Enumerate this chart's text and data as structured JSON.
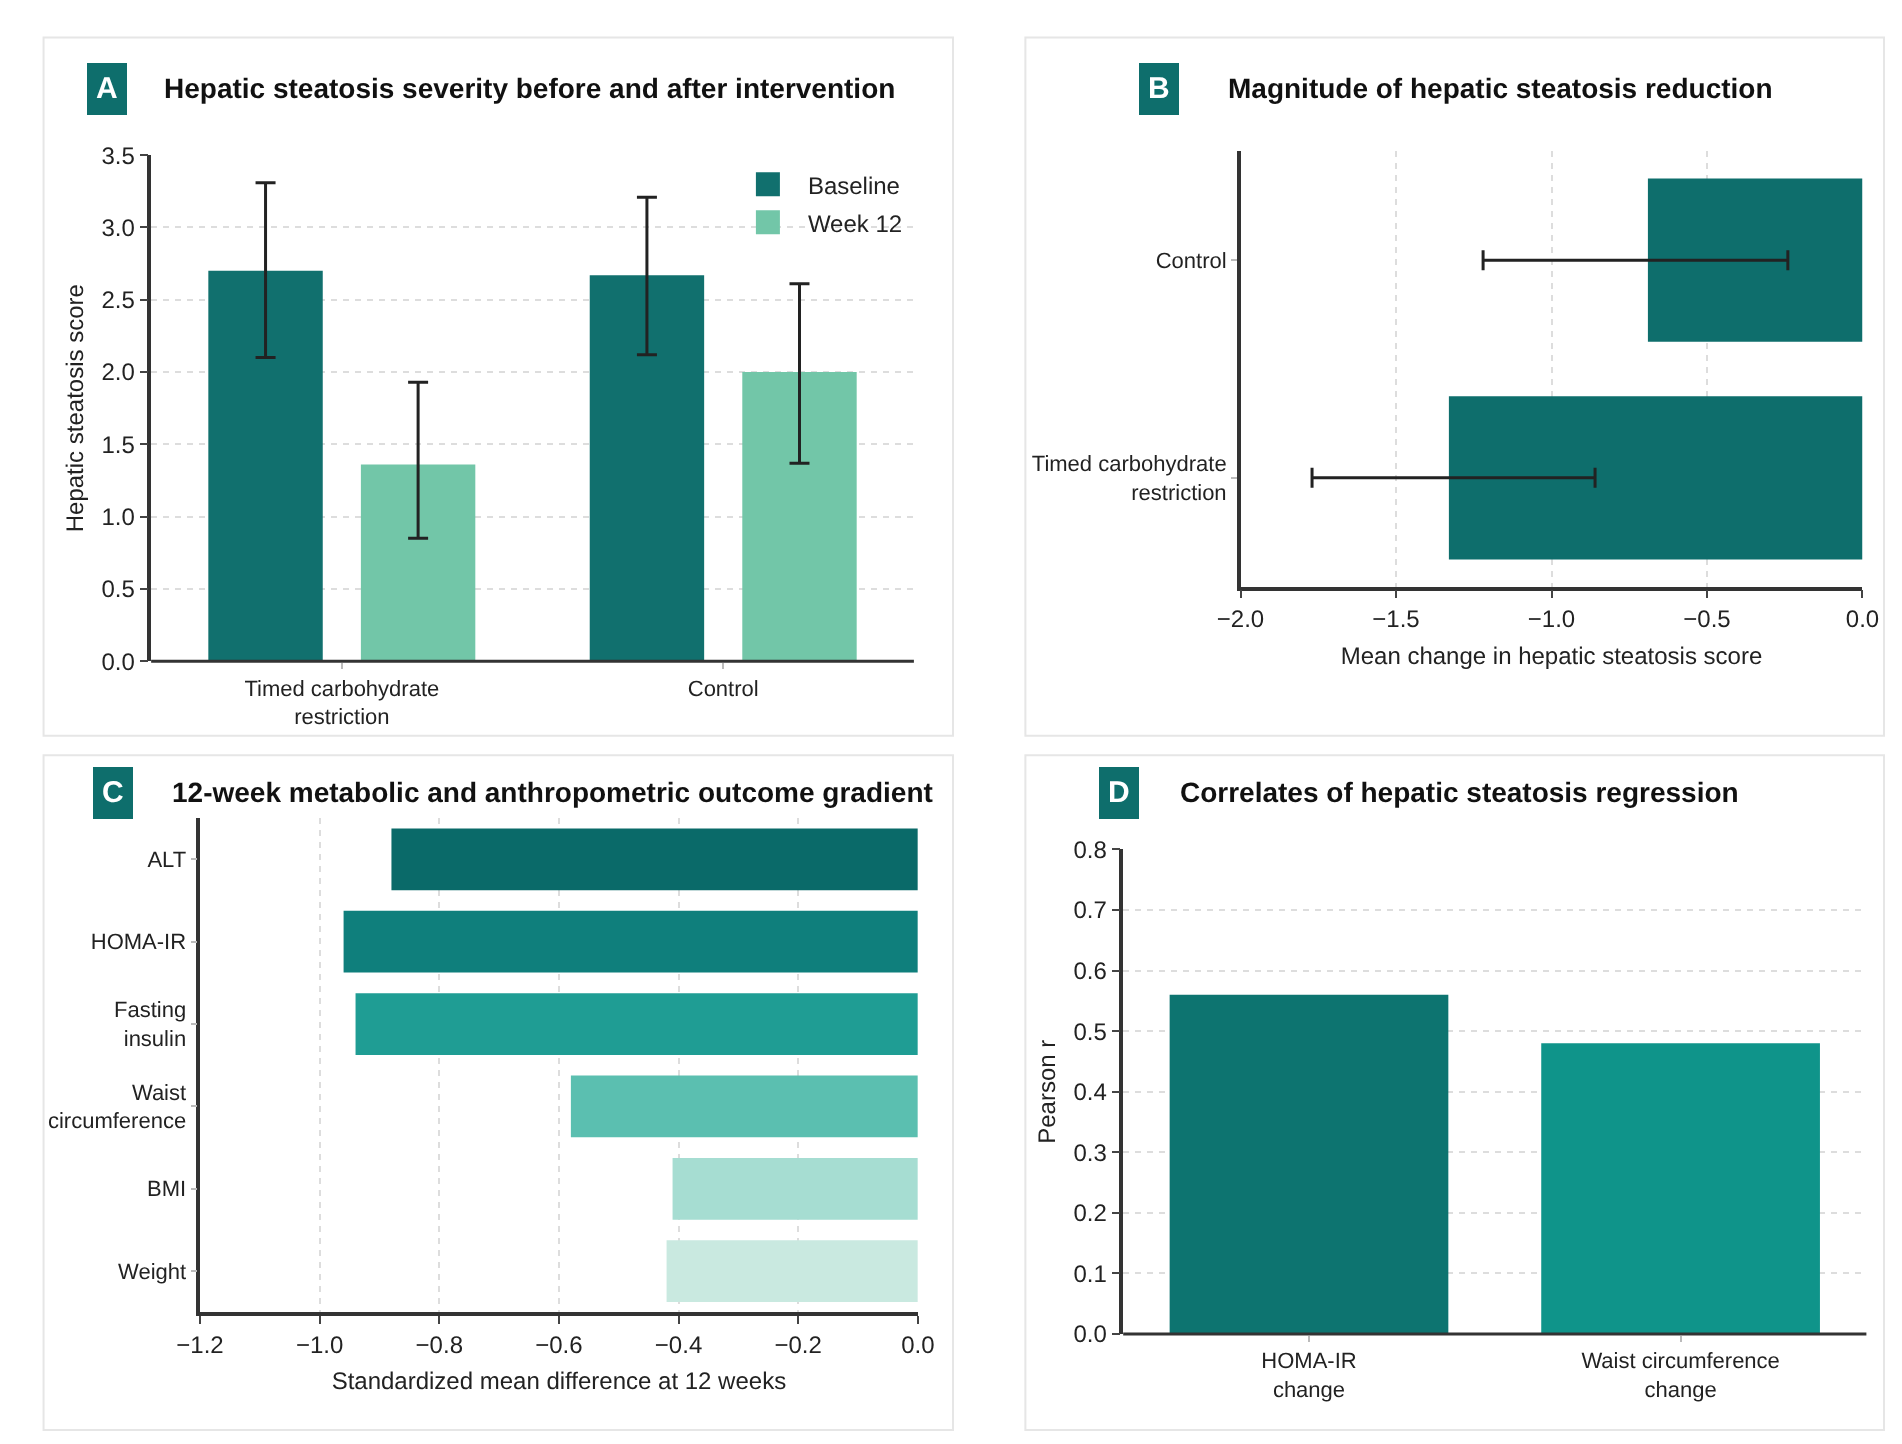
{
  "chart_data": [
    {
      "type": "bar",
      "title": "Hepatic steatosis severity before and after intervention",
      "annotations": [
        "A"
      ],
      "ylabel": "Hepatic steatosis score",
      "categories": [
        "Timed carbohydrate restriction",
        "Control"
      ],
      "series": [
        {
          "name": "Baseline",
          "color": "#11706e",
          "values": [
            2.7,
            2.67
          ],
          "errors": [
            [
              2.1,
              3.31
            ],
            [
              2.12,
              3.21
            ]
          ]
        },
        {
          "name": "Week 12",
          "color": "#72c6a8",
          "values": [
            1.36,
            2.0
          ],
          "errors": [
            [
              0.85,
              1.93
            ],
            [
              1.37,
              2.61
            ]
          ]
        }
      ],
      "ylim": [
        0,
        3.5
      ],
      "yticks": [
        {
          "value": 0,
          "label": "0.0"
        },
        0.5,
        {
          "value": 1,
          "label": "1.0"
        },
        1.5,
        {
          "value": 2,
          "label": "2.0"
        },
        2.5,
        {
          "value": 3,
          "label": "3.0"
        },
        3.5
      ],
      "grid": "y",
      "legend": "top right"
    },
    {
      "type": "bar",
      "orientation": "horizontal",
      "title": "Magnitude of hepatic steatosis reduction",
      "annotations": [
        "B"
      ],
      "xlabel": "Mean change in hepatic steatosis score",
      "categories": [
        "Control",
        "Timed carbohydrate restriction"
      ],
      "series": [
        {
          "color": "#0e6e6c",
          "values": [
            -0.69,
            -1.33
          ],
          "errors": [
            [
              -1.22,
              -0.24
            ],
            [
              -1.77,
              -0.86
            ]
          ]
        }
      ],
      "xlim": [
        -2,
        0
      ],
      "xticks": [
        {
          "value": -2,
          "label": "−2.0"
        },
        {
          "value": -1.5,
          "label": "−1.5"
        },
        {
          "value": -1,
          "label": "−1.0"
        },
        {
          "value": -0.5,
          "label": "−0.5"
        },
        {
          "value": 0,
          "label": "0.0"
        }
      ],
      "grid": "x"
    },
    {
      "type": "bar",
      "orientation": "horizontal",
      "title": "12-week metabolic and anthropometric outcome gradient",
      "annotations": [
        "C"
      ],
      "xlabel": "Standardized mean difference at 12 weeks",
      "categories": [
        "ALT",
        "HOMA-IR",
        "Fasting insulin",
        "Waist circumference",
        "BMI",
        "Weight"
      ],
      "series": [
        {
          "colors": [
            "#0a6a69",
            "#0f7f7c",
            "#1f9d94",
            "#5bbfb0",
            "#a6ddd2",
            "#c9e9e0"
          ],
          "values": [
            -0.88,
            -0.96,
            -0.94,
            -0.58,
            -0.41,
            -0.42
          ]
        }
      ],
      "xlim": [
        -1.2,
        0
      ],
      "xticks": [
        {
          "value": -1.2,
          "label": "−1.2"
        },
        {
          "value": -1,
          "label": "−1.0"
        },
        {
          "value": -0.8,
          "label": "−0.8"
        },
        {
          "value": -0.6,
          "label": "−0.6"
        },
        {
          "value": -0.4,
          "label": "−0.4"
        },
        {
          "value": -0.2,
          "label": "−0.2"
        },
        {
          "value": 0,
          "label": "0.0"
        }
      ],
      "grid": "x"
    },
    {
      "type": "bar",
      "title": "Correlates of hepatic steatosis regression",
      "annotations": [
        "D"
      ],
      "ylabel": "Pearson r",
      "categories": [
        "HOMA-IR change",
        "Waist circumference change"
      ],
      "series": [
        {
          "colors": [
            "#0d7470",
            "#0f948a"
          ],
          "values": [
            0.56,
            0.48
          ]
        }
      ],
      "ylim": [
        0,
        0.8
      ],
      "yticks": [
        {
          "value": 0,
          "label": "0.0"
        },
        0.1,
        0.2,
        0.3,
        0.4,
        0.5,
        0.6,
        0.7,
        0.8
      ],
      "grid": "y"
    }
  ]
}
